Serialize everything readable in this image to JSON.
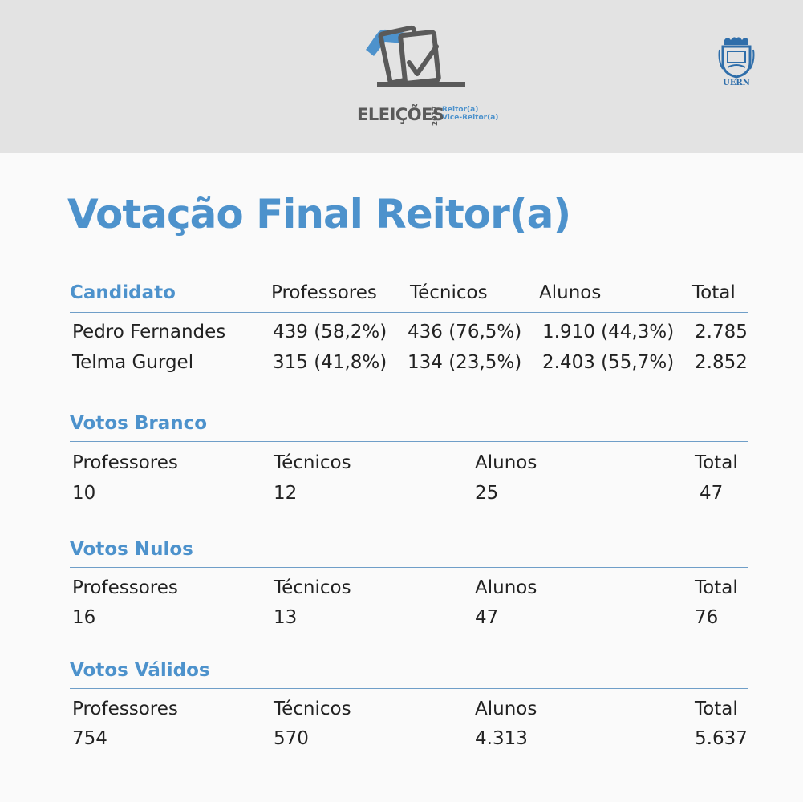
{
  "colors": {
    "accent": "#4d92cc",
    "header_bg": "#e3e3e3",
    "text": "#222222"
  },
  "logo": {
    "icon": "ballot-box-check-icon",
    "word": "ELEIÇÕES",
    "year": "2017",
    "role1": "Reitor(a)",
    "role2": "Vice-Reitor(a)"
  },
  "university": {
    "icon": "uern-crest-icon",
    "name": "UERN"
  },
  "title": "Votação Final Reitor(a)",
  "candidates_table": {
    "headers": [
      "Candidato",
      "Professores",
      "Técnicos",
      "Alunos",
      "Total"
    ],
    "rows": [
      [
        "Pedro Fernandes",
        "439 (58,2%)",
        "436 (76,5%)",
        "1.910 (44,3%)",
        "2.785"
      ],
      [
        "Telma Gurgel",
        "315 (41,8%)",
        "134 (23,5%)",
        "2.403 (55,7%)",
        "2.852"
      ]
    ]
  },
  "sections": [
    {
      "title": "Votos Branco",
      "labels": [
        "Professores",
        "Técnicos",
        "Alunos",
        "Total"
      ],
      "values": [
        "10",
        "12",
        "25",
        "47"
      ]
    },
    {
      "title": "Votos Nulos",
      "labels": [
        "Professores",
        "Técnicos",
        "Alunos",
        "Total"
      ],
      "values": [
        "16",
        "13",
        "47",
        "76"
      ]
    },
    {
      "title": "Votos Válidos",
      "labels": [
        "Professores",
        "Técnicos",
        "Alunos",
        "Total"
      ],
      "values": [
        "754",
        "570",
        "4.313",
        "5.637"
      ]
    }
  ]
}
